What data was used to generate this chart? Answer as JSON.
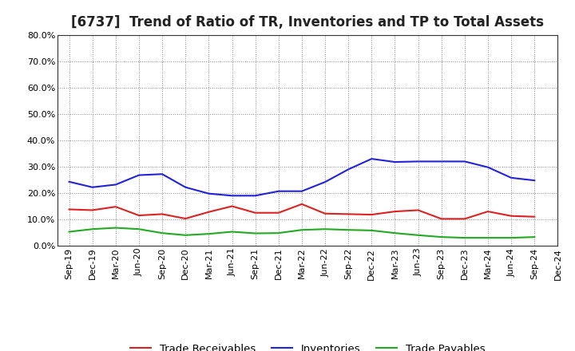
{
  "title": "[6737]  Trend of Ratio of TR, Inventories and TP to Total Assets",
  "x_labels": [
    "Sep-19",
    "Dec-19",
    "Mar-20",
    "Jun-20",
    "Sep-20",
    "Dec-20",
    "Mar-21",
    "Jun-21",
    "Sep-21",
    "Dec-21",
    "Mar-22",
    "Jun-22",
    "Sep-22",
    "Dec-22",
    "Mar-23",
    "Jun-23",
    "Sep-23",
    "Dec-23",
    "Mar-24",
    "Jun-24",
    "Sep-24",
    "Dec-24"
  ],
  "trade_receivables": [
    0.138,
    0.135,
    0.148,
    0.115,
    0.12,
    0.103,
    0.128,
    0.15,
    0.125,
    0.125,
    0.158,
    0.122,
    0.12,
    0.118,
    0.13,
    0.135,
    0.102,
    0.102,
    0.13,
    0.113,
    0.11,
    null
  ],
  "inventories": [
    0.243,
    0.222,
    0.232,
    0.268,
    0.272,
    0.222,
    0.198,
    0.19,
    0.19,
    0.207,
    0.207,
    0.242,
    0.29,
    0.33,
    0.318,
    0.32,
    0.32,
    0.32,
    0.298,
    0.258,
    0.248,
    null
  ],
  "trade_payables": [
    0.053,
    0.063,
    0.068,
    0.063,
    0.048,
    0.04,
    0.045,
    0.053,
    0.047,
    0.048,
    0.06,
    0.063,
    0.06,
    0.058,
    0.048,
    0.04,
    0.033,
    0.03,
    0.03,
    0.03,
    0.033,
    null
  ],
  "line_color_tr": "#dd2222",
  "line_color_inv": "#2222dd",
  "line_color_tp": "#22aa22",
  "ylim": [
    0.0,
    0.8
  ],
  "yticks": [
    0.0,
    0.1,
    0.2,
    0.3,
    0.4,
    0.5,
    0.6,
    0.7,
    0.8
  ],
  "background_color": "#ffffff",
  "plot_bg_color": "#ffffff",
  "grid_color": "#888888",
  "legend_labels": [
    "Trade Receivables",
    "Inventories",
    "Trade Payables"
  ],
  "title_fontsize": 12,
  "tick_fontsize": 8,
  "legend_fontsize": 9.5
}
